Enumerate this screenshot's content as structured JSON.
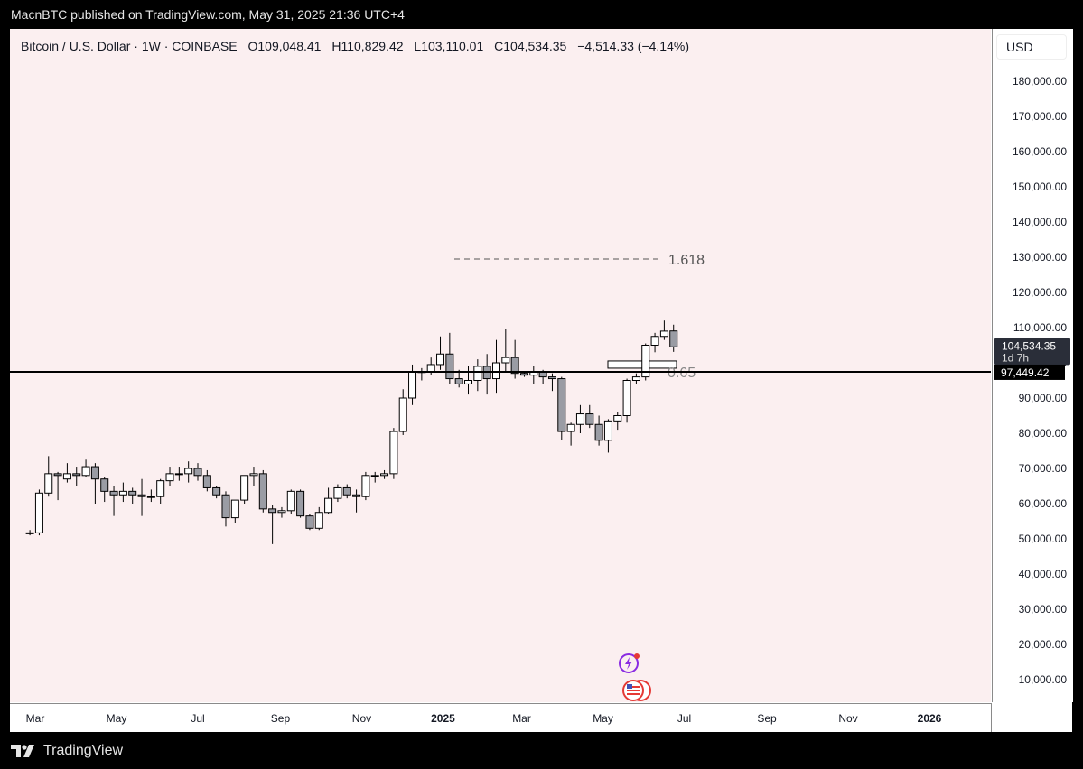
{
  "header": {
    "published": "MacnBTC published on TradingView.com, May 31, 2025 21:36 UTC+4"
  },
  "legend": {
    "symbol": "Bitcoin / U.S. Dollar · 1W · COINBASE",
    "open_label": "O",
    "open": "109,048.41",
    "high_label": "H",
    "high": "110,829.42",
    "low_label": "L",
    "low": "103,110.01",
    "close_label": "C",
    "close": "104,534.35",
    "change": "−4,514.33 (−4.14%)"
  },
  "currency": "USD",
  "footer": {
    "brand": "TradingView"
  },
  "colors": {
    "up": "#ffffff",
    "down": "#9a9ca4",
    "outline": "#000000",
    "background": "#fbeff0"
  },
  "chart_data": {
    "type": "candlestick",
    "timeframe": "1W",
    "ylim": [
      0,
      190000
    ],
    "y_ticks": [
      "180,000.00",
      "170,000.00",
      "160,000.00",
      "150,000.00",
      "140,000.00",
      "130,000.00",
      "120,000.00",
      "110,000.00",
      "100,000.00",
      "90,000.00",
      "80,000.00",
      "70,000.00",
      "60,000.00",
      "50,000.00",
      "40,000.00",
      "30,000.00",
      "20,000.00",
      "10,000.00"
    ],
    "y_tick_values": [
      180000,
      170000,
      160000,
      150000,
      140000,
      130000,
      120000,
      110000,
      100000,
      90000,
      80000,
      70000,
      60000,
      50000,
      40000,
      30000,
      20000,
      10000
    ],
    "x_tick_labels": [
      "Mar",
      "May",
      "Jul",
      "Sep",
      "Nov",
      "2025",
      "Mar",
      "May",
      "Jul",
      "Sep",
      "Nov",
      "2026"
    ],
    "x_tick_dates": [
      "2024-03-01",
      "2024-05-01",
      "2024-07-01",
      "2024-09-01",
      "2024-11-01",
      "2025-01-01",
      "2025-03-01",
      "2025-05-01",
      "2025-07-01",
      "2025-09-01",
      "2025-11-01",
      "2026-01-01"
    ],
    "candles": [
      {
        "date": "2024-02-26",
        "o": 51700,
        "h": 52500,
        "l": 51000,
        "c": 51700
      },
      {
        "date": "2024-03-04",
        "o": 51700,
        "h": 64000,
        "l": 51000,
        "c": 63000
      },
      {
        "date": "2024-03-11",
        "o": 63000,
        "h": 73500,
        "l": 62000,
        "c": 68500
      },
      {
        "date": "2024-03-18",
        "o": 68500,
        "h": 69000,
        "l": 61000,
        "c": 68000
      },
      {
        "date": "2024-03-25",
        "o": 67000,
        "h": 71500,
        "l": 66000,
        "c": 68500
      },
      {
        "date": "2024-04-01",
        "o": 68500,
        "h": 70500,
        "l": 65000,
        "c": 68000
      },
      {
        "date": "2024-04-08",
        "o": 68000,
        "h": 72500,
        "l": 67500,
        "c": 70500
      },
      {
        "date": "2024-04-15",
        "o": 70500,
        "h": 71500,
        "l": 60000,
        "c": 67000
      },
      {
        "date": "2024-04-22",
        "o": 67000,
        "h": 67500,
        "l": 60500,
        "c": 63500
      },
      {
        "date": "2024-04-29",
        "o": 63500,
        "h": 65000,
        "l": 56500,
        "c": 62500
      },
      {
        "date": "2024-05-06",
        "o": 62500,
        "h": 66000,
        "l": 60500,
        "c": 63500
      },
      {
        "date": "2024-05-13",
        "o": 63500,
        "h": 64500,
        "l": 60000,
        "c": 62500
      },
      {
        "date": "2024-05-20",
        "o": 62500,
        "h": 67000,
        "l": 56500,
        "c": 62000
      },
      {
        "date": "2024-05-27",
        "o": 62000,
        "h": 64000,
        "l": 60500,
        "c": 62000
      },
      {
        "date": "2024-06-03",
        "o": 62000,
        "h": 67000,
        "l": 60000,
        "c": 66500
      },
      {
        "date": "2024-06-10",
        "o": 66500,
        "h": 70500,
        "l": 65000,
        "c": 68500
      },
      {
        "date": "2024-06-17",
        "o": 68500,
        "h": 70500,
        "l": 66500,
        "c": 68500
      },
      {
        "date": "2024-06-24",
        "o": 68500,
        "h": 72000,
        "l": 66000,
        "c": 70000
      },
      {
        "date": "2024-07-01",
        "o": 70000,
        "h": 71500,
        "l": 66500,
        "c": 68000
      },
      {
        "date": "2024-07-08",
        "o": 68000,
        "h": 69500,
        "l": 63500,
        "c": 64500
      },
      {
        "date": "2024-07-15",
        "o": 64500,
        "h": 65000,
        "l": 61500,
        "c": 62500
      },
      {
        "date": "2024-07-22",
        "o": 62500,
        "h": 63500,
        "l": 53500,
        "c": 56000
      },
      {
        "date": "2024-07-29",
        "o": 56000,
        "h": 61000,
        "l": 54500,
        "c": 61000
      },
      {
        "date": "2024-08-05",
        "o": 61000,
        "h": 68000,
        "l": 60000,
        "c": 68000
      },
      {
        "date": "2024-08-12",
        "o": 68000,
        "h": 70500,
        "l": 65000,
        "c": 68500
      },
      {
        "date": "2024-08-19",
        "o": 68500,
        "h": 69500,
        "l": 57500,
        "c": 58500
      },
      {
        "date": "2024-08-26",
        "o": 58500,
        "h": 59500,
        "l": 48500,
        "c": 57500
      },
      {
        "date": "2024-09-02",
        "o": 57500,
        "h": 59000,
        "l": 56000,
        "c": 58000
      },
      {
        "date": "2024-09-09",
        "o": 58000,
        "h": 64000,
        "l": 57000,
        "c": 63500
      },
      {
        "date": "2024-09-16",
        "o": 63500,
        "h": 64000,
        "l": 56000,
        "c": 56500
      },
      {
        "date": "2024-09-23",
        "o": 56500,
        "h": 57000,
        "l": 52500,
        "c": 53000
      },
      {
        "date": "2024-09-30",
        "o": 53000,
        "h": 59000,
        "l": 52500,
        "c": 57500
      },
      {
        "date": "2024-10-07",
        "o": 57500,
        "h": 64500,
        "l": 57000,
        "c": 61500
      },
      {
        "date": "2024-10-14",
        "o": 61500,
        "h": 65500,
        "l": 60500,
        "c": 64500
      },
      {
        "date": "2024-10-21",
        "o": 64500,
        "h": 65500,
        "l": 61500,
        "c": 62500
      },
      {
        "date": "2024-10-28",
        "o": 62500,
        "h": 64000,
        "l": 57500,
        "c": 62000
      },
      {
        "date": "2024-11-04",
        "o": 62000,
        "h": 69000,
        "l": 61000,
        "c": 68000
      },
      {
        "date": "2024-11-11",
        "o": 68000,
        "h": 69000,
        "l": 66000,
        "c": 68000
      },
      {
        "date": "2024-11-18",
        "o": 68000,
        "h": 69500,
        "l": 67000,
        "c": 68500
      },
      {
        "date": "2024-11-25",
        "o": 68500,
        "h": 81500,
        "l": 67000,
        "c": 80500
      },
      {
        "date": "2024-12-02",
        "o": 80500,
        "h": 92500,
        "l": 79500,
        "c": 90000
      },
      {
        "date": "2024-12-09",
        "o": 90000,
        "h": 99500,
        "l": 88000,
        "c": 97500
      },
      {
        "date": "2024-12-16",
        "o": 97500,
        "h": 98500,
        "l": 95000,
        "c": 97500
      },
      {
        "date": "2024-12-23",
        "o": 97500,
        "h": 101500,
        "l": 96500,
        "c": 99500
      },
      {
        "date": "2024-12-30",
        "o": 99500,
        "h": 107500,
        "l": 98000,
        "c": 102500
      },
      {
        "date": "2025-01-06",
        "o": 102500,
        "h": 108500,
        "l": 94000,
        "c": 95500
      },
      {
        "date": "2025-01-13",
        "o": 95500,
        "h": 98000,
        "l": 93000,
        "c": 94000
      },
      {
        "date": "2025-01-20",
        "o": 94000,
        "h": 99000,
        "l": 91000,
        "c": 95000
      },
      {
        "date": "2025-01-27",
        "o": 95000,
        "h": 101000,
        "l": 92000,
        "c": 99000
      },
      {
        "date": "2025-02-03",
        "o": 99000,
        "h": 102500,
        "l": 91000,
        "c": 95500
      },
      {
        "date": "2025-02-10",
        "o": 95500,
        "h": 106500,
        "l": 91500,
        "c": 100000
      },
      {
        "date": "2025-02-17",
        "o": 100000,
        "h": 109500,
        "l": 97500,
        "c": 101500
      },
      {
        "date": "2025-02-24",
        "o": 101500,
        "h": 106500,
        "l": 95500,
        "c": 97000
      },
      {
        "date": "2025-03-03",
        "o": 97000,
        "h": 97500,
        "l": 96000,
        "c": 96500
      },
      {
        "date": "2025-03-10",
        "o": 96500,
        "h": 99000,
        "l": 94000,
        "c": 97500
      },
      {
        "date": "2025-03-17",
        "o": 97500,
        "h": 98000,
        "l": 94000,
        "c": 96000
      },
      {
        "date": "2025-03-24",
        "o": 96000,
        "h": 97000,
        "l": 92000,
        "c": 95500
      },
      {
        "date": "2025-03-31",
        "o": 95500,
        "h": 96000,
        "l": 78000,
        "c": 80500
      },
      {
        "date": "2025-04-07",
        "o": 80500,
        "h": 83000,
        "l": 76500,
        "c": 82500
      },
      {
        "date": "2025-04-14",
        "o": 82500,
        "h": 88000,
        "l": 80000,
        "c": 85500
      },
      {
        "date": "2025-04-21",
        "o": 85500,
        "h": 88000,
        "l": 81500,
        "c": 82500
      },
      {
        "date": "2025-04-28",
        "o": 82500,
        "h": 85000,
        "l": 76500,
        "c": 78000
      },
      {
        "date": "2025-05-05",
        "o": 78000,
        "h": 84000,
        "l": 74500,
        "c": 83500
      },
      {
        "date": "2025-05-12",
        "o": 83500,
        "h": 86000,
        "l": 81000,
        "c": 85000
      },
      {
        "date": "2025-05-19",
        "o": 85000,
        "h": 95500,
        "l": 83000,
        "c": 95000
      },
      {
        "date": "2025-05-26",
        "o": 95000,
        "h": 97000,
        "l": 94000,
        "c": 96000
      },
      {
        "date": "2025-06-02",
        "o": 96000,
        "h": 105500,
        "l": 95000,
        "c": 105000
      },
      {
        "date": "2025-06-09",
        "o": 105000,
        "h": 108500,
        "l": 103000,
        "c": 107500
      },
      {
        "date": "2025-06-16",
        "o": 107500,
        "h": 112000,
        "l": 106500,
        "c": 109000
      },
      {
        "date": "2025-06-23",
        "o": 109048.41,
        "h": 110829.42,
        "l": 103110.01,
        "c": 104534.35
      }
    ],
    "horizontal_line": {
      "value": 97449.42,
      "label": "97,449.42"
    },
    "fib_levels": [
      {
        "label": "1.618",
        "value": 129500
      },
      {
        "label": "0.65",
        "value": 99500
      }
    ],
    "price_label": {
      "value": 104534.35,
      "label": "104,534.35",
      "countdown": "1d 7h"
    },
    "grid": false
  }
}
